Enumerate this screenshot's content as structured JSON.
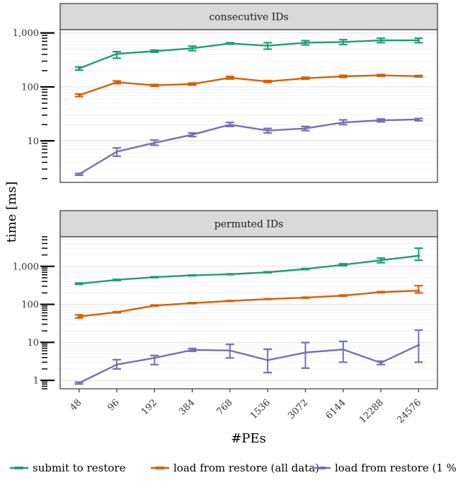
{
  "chart_data": {
    "type": "line",
    "x_label": "#PEs",
    "y_label": "time [ms]",
    "y_scale": "log",
    "error_bars": true,
    "grid": true,
    "legend_position": "bottom",
    "categories": [
      "48",
      "96",
      "192",
      "384",
      "768",
      "1536",
      "3072",
      "6144",
      "12288",
      "24576"
    ],
    "panels": [
      {
        "title": "consecutive IDs",
        "ylim": [
          1.7,
          1150
        ],
        "y_ticks": [
          10,
          100,
          1000
        ],
        "y_tick_labels": [
          "10",
          "100",
          "1,000"
        ],
        "series": [
          {
            "name": "submit to restore",
            "color": "#1b9e77",
            "values": [
              220,
              410,
              460,
              520,
              640,
              580,
              660,
              680,
              730,
              730
            ],
            "err_low": [
              205,
              340,
              440,
              470,
              620,
              500,
              600,
              610,
              660,
              660
            ],
            "err_high": [
              235,
              450,
              480,
              570,
              660,
              660,
              720,
              750,
              800,
              800
            ]
          },
          {
            "name": "load from restore (all data)",
            "color": "#d95f02",
            "values": [
              70,
              122,
              107,
              113,
              148,
              126,
              145,
              157,
              164,
              158
            ],
            "err_low": [
              66,
              115,
              103,
              108,
              140,
              121,
              139,
              150,
              158,
              153
            ],
            "err_high": [
              74,
              129,
              111,
              118,
              156,
              131,
              151,
              164,
              170,
              163
            ]
          },
          {
            "name": "load from restore (1 %",
            "color": "#7570b3",
            "values": [
              2.4,
              6.3,
              9.2,
              13,
              20,
              15.5,
              17,
              22,
              24,
              25
            ],
            "err_low": [
              2.3,
              5.2,
              8.3,
              12,
              18.5,
              14,
              15.5,
              20,
              22.5,
              23.5
            ],
            "err_high": [
              2.5,
              7.4,
              10.4,
              14,
              22,
              17,
              18.5,
              24.5,
              25.5,
              26
            ]
          }
        ]
      },
      {
        "title": "permuted IDs",
        "ylim": [
          0.6,
          6000
        ],
        "y_ticks": [
          1,
          10,
          100,
          1000
        ],
        "y_tick_labels": [
          "1",
          "10",
          "100",
          "1,000"
        ],
        "series": [
          {
            "name": "submit to restore",
            "color": "#1b9e77",
            "values": [
              350,
              440,
              520,
              580,
              620,
              700,
              850,
              1100,
              1450,
              1900
            ],
            "err_low": [
              335,
              425,
              505,
              565,
              605,
              680,
              820,
              1040,
              1250,
              1450
            ],
            "err_high": [
              365,
              455,
              535,
              595,
              635,
              720,
              880,
              1170,
              1650,
              3000
            ]
          },
          {
            "name": "load from restore (all data)",
            "color": "#d95f02",
            "values": [
              48,
              62,
              93,
              108,
              123,
              138,
              150,
              170,
              210,
              230
            ],
            "err_low": [
              44,
              60,
              90,
              105,
              120,
              135,
              146,
              164,
              203,
              200
            ],
            "err_high": [
              53,
              64,
              96,
              111,
              126,
              141,
              154,
              176,
              217,
              310
            ]
          },
          {
            "name": "load from restore (1 %",
            "color": "#7570b3",
            "values": [
              0.85,
              2.6,
              3.9,
              6.3,
              6.1,
              3.4,
              5.4,
              6.5,
              2.9,
              8.5
            ],
            "err_low": [
              0.8,
              2.0,
              2.6,
              5.8,
              3.9,
              1.6,
              2.1,
              3.0,
              2.6,
              3.0
            ],
            "err_high": [
              0.9,
              3.5,
              4.5,
              6.9,
              8.9,
              6.6,
              9.9,
              10.6,
              3.2,
              21
            ]
          }
        ]
      }
    ],
    "legend": [
      {
        "label": "submit to restore",
        "color": "#1b9e77"
      },
      {
        "label": "load from restore (all data)",
        "color": "#d95f02"
      },
      {
        "label": "load from restore (1 %",
        "color": "#7570b3"
      }
    ]
  }
}
